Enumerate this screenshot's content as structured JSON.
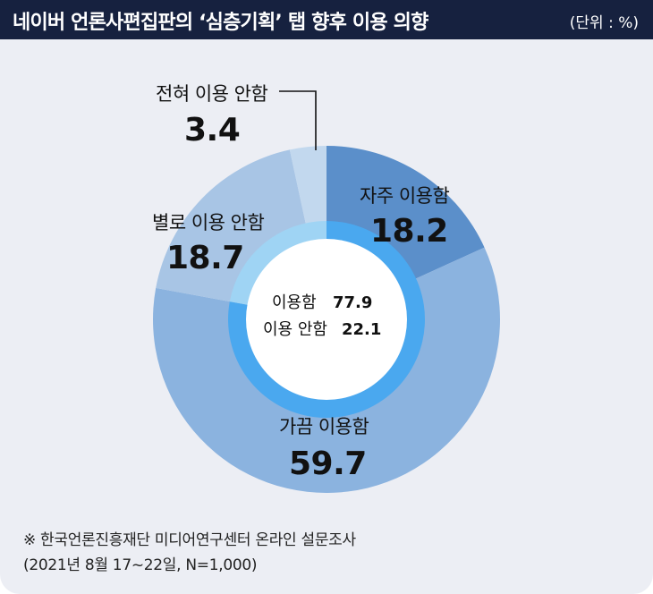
{
  "header": {
    "title": "네이버 언론사편집판의 ‘심층기획’ 탭 향후 이용 의향",
    "unit": "(단위 : %)"
  },
  "chart_data": {
    "type": "pie",
    "style": "donut",
    "categories": [
      "자주 이용함",
      "가끔 이용함",
      "별로 이용 안함",
      "전혀 이용 안함"
    ],
    "values": [
      18.2,
      59.7,
      18.7,
      3.4
    ],
    "value_labels": [
      "18.2",
      "59.7",
      "18.7",
      "3.4"
    ],
    "colors": [
      "#5b8fca",
      "#8bb3df",
      "#a8c5e5",
      "#c2d8ee"
    ],
    "inner_ring": {
      "categories": [
        "이용함",
        "이용 안함"
      ],
      "values": [
        77.9,
        22.1
      ],
      "value_labels": [
        "77.9",
        "22.1"
      ],
      "colors": [
        "#4aa8ef",
        "#9fd4f4"
      ]
    }
  },
  "footnote": {
    "line1": "※  한국언론진흥재단 미디어연구센터 온라인 설문조사",
    "line2": "(2021년 8월 17~22일, N=1,000)"
  }
}
